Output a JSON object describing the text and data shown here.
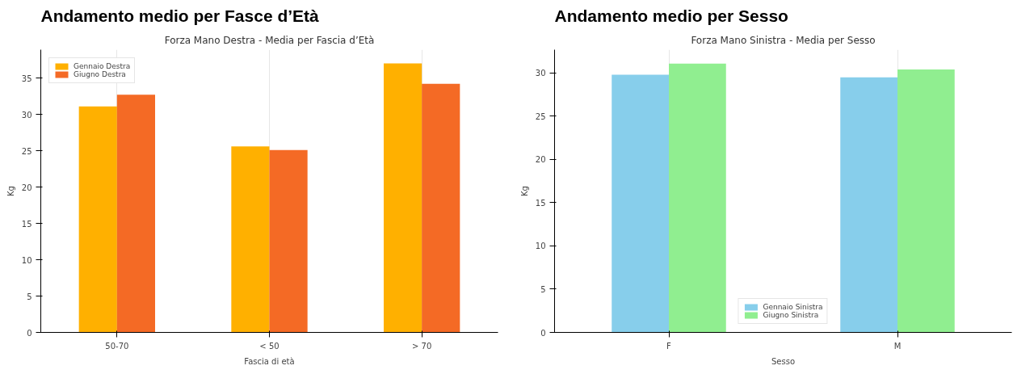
{
  "chart_data": [
    {
      "type": "bar",
      "title": "Andamento medio per Fasce d’Età",
      "subtitle": "Forza Mano Destra - Media per Fascia d’Età",
      "xlabel": "Fascia di età",
      "ylabel": "Kg",
      "categories": [
        "50-70",
        "< 50",
        "> 70"
      ],
      "series": [
        {
          "name": "Gennaio Destra",
          "color": "#ffb000",
          "values": [
            31.1,
            25.6,
            37.0
          ]
        },
        {
          "name": "Giugno Destra",
          "color": "#f46a25",
          "values": [
            32.7,
            25.1,
            34.2
          ]
        }
      ],
      "ylim": [
        0,
        38.9
      ],
      "yticks": [
        0,
        5,
        10,
        15,
        20,
        25,
        30,
        35
      ],
      "grid": "x",
      "legend": "top left"
    },
    {
      "type": "bar",
      "title": "Andamento medio per Sesso",
      "subtitle": "Forza Mano Sinistra - Media per Sesso",
      "xlabel": "Sesso",
      "ylabel": "Kg",
      "categories": [
        "F",
        "M"
      ],
      "series": [
        {
          "name": "Gennaio Sinistra",
          "color": "#87ceeb",
          "values": [
            29.8,
            29.5
          ]
        },
        {
          "name": "Giugno Sinistra",
          "color": "#90ee90",
          "values": [
            31.1,
            30.4
          ]
        }
      ],
      "ylim": [
        0,
        32.7
      ],
      "yticks": [
        0,
        5,
        10,
        15,
        20,
        25,
        30
      ],
      "grid": "x",
      "legend": "bottom"
    }
  ]
}
